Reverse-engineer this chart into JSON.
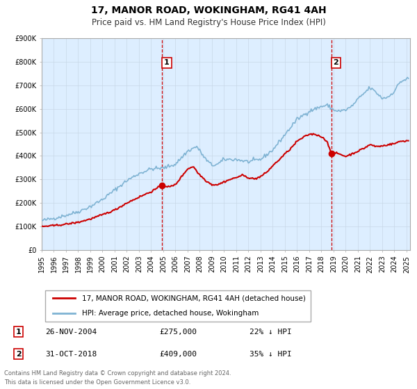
{
  "title": "17, MANOR ROAD, WOKINGHAM, RG41 4AH",
  "subtitle": "Price paid vs. HM Land Registry's House Price Index (HPI)",
  "legend_line1": "17, MANOR ROAD, WOKINGHAM, RG41 4AH (detached house)",
  "legend_line2": "HPI: Average price, detached house, Wokingham",
  "sale1_date": "26-NOV-2004",
  "sale1_price": 275000,
  "sale1_label": "22% ↓ HPI",
  "sale1_x": 2004.9167,
  "sale2_date": "31-OCT-2018",
  "sale2_price": 409000,
  "sale2_label": "35% ↓ HPI",
  "sale2_x": 2018.8333,
  "footer1": "Contains HM Land Registry data © Crown copyright and database right 2024.",
  "footer2": "This data is licensed under the Open Government Licence v3.0.",
  "red_color": "#cc0000",
  "blue_color": "#7fb3d3",
  "background_color": "#ddeeff",
  "plot_bg": "#ffffff",
  "ylim_max": 900000,
  "xlim_start": 1995.0,
  "xlim_end": 2025.3
}
